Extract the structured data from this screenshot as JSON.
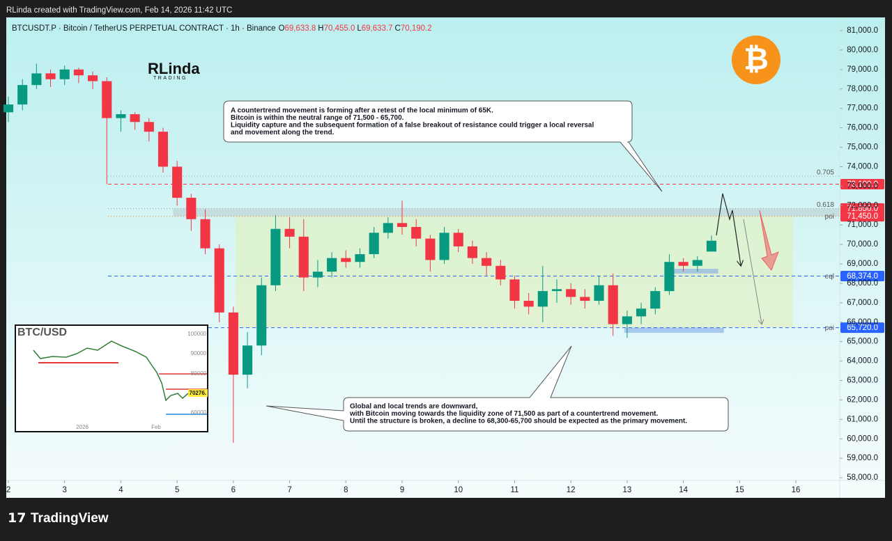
{
  "top_bar": "RLinda created with TradingView.com, Feb 14, 2026 11:42 UTC",
  "brand": {
    "name": "RLinda",
    "sub": "TRADING"
  },
  "footer": "TradingView",
  "chart_data": {
    "type": "candlestick",
    "title": "BTCUSDT.P · Bitcoin / TetherUS PERPETUAL CONTRACT · 1h · Binance",
    "ohlc_legend": [
      {
        "key": "O",
        "value": "69,633.8"
      },
      {
        "key": "H",
        "value": "70,455.0"
      },
      {
        "key": "L",
        "value": "69,633.7"
      },
      {
        "key": "C",
        "value": "70,190.2"
      }
    ],
    "up_color": "#089981",
    "down_color": "#f23645",
    "x": [
      2,
      2.25,
      2.5,
      2.75,
      3,
      3.25,
      3.5,
      3.75,
      4,
      4.25,
      4.5,
      4.75,
      5,
      5.25,
      5.5,
      5.75,
      6,
      6.25,
      6.5,
      6.75,
      7,
      7.25,
      7.5,
      7.75,
      8,
      8.25,
      8.5,
      8.75,
      9,
      9.25,
      9.5,
      9.75,
      10,
      10.25,
      10.5,
      10.75,
      11,
      11.25,
      11.5,
      11.75,
      12,
      12.25,
      12.5,
      12.75,
      13,
      13.25,
      13.5,
      13.75,
      14,
      14.25,
      14.5
    ],
    "open": [
      76800,
      77200,
      78200,
      78800,
      78500,
      79000,
      78700,
      78400,
      76500,
      76700,
      76300,
      75800,
      74000,
      72400,
      71300,
      69800,
      66500,
      63300,
      64800,
      67900,
      70800,
      70400,
      68300,
      68600,
      69300,
      69100,
      69500,
      70600,
      71100,
      70900,
      70300,
      69200,
      70600,
      69900,
      69300,
      68900,
      68200,
      67100,
      66800,
      67600,
      67700,
      67300,
      67100,
      67900,
      65900,
      66300,
      66700,
      67600,
      69100,
      68900,
      69633.8
    ],
    "high": [
      77600,
      78500,
      79300,
      79000,
      79200,
      79100,
      78900,
      78600,
      76900,
      76800,
      76500,
      76000,
      74300,
      72600,
      71800,
      70000,
      66800,
      65500,
      68300,
      71500,
      71400,
      71300,
      69200,
      69600,
      69700,
      69800,
      70900,
      71400,
      72250,
      71300,
      70500,
      70900,
      70800,
      70200,
      69600,
      69200,
      68400,
      67500,
      68900,
      68200,
      68000,
      67700,
      68400,
      68500,
      66600,
      67000,
      67800,
      69500,
      69300,
      69400,
      70455
    ],
    "low": [
      76300,
      76900,
      78000,
      78100,
      78200,
      78300,
      78000,
      73100,
      75800,
      75900,
      75300,
      73700,
      72000,
      70700,
      69500,
      66000,
      59800,
      62600,
      64300,
      67600,
      69800,
      67600,
      67800,
      68300,
      68800,
      68800,
      69300,
      70300,
      70500,
      69900,
      68600,
      69000,
      69600,
      69000,
      68400,
      67900,
      66700,
      66400,
      66000,
      67000,
      66900,
      66700,
      66900,
      65300,
      65200,
      65900,
      66400,
      67400,
      68600,
      68600,
      69633.7
    ],
    "close": [
      77200,
      78200,
      78800,
      78500,
      79000,
      78700,
      78400,
      76500,
      76700,
      76300,
      75800,
      74000,
      72400,
      71300,
      69800,
      66500,
      63300,
      64800,
      67900,
      70800,
      70400,
      68300,
      68600,
      69300,
      69100,
      69500,
      70600,
      71100,
      70900,
      70300,
      69200,
      70600,
      69900,
      69300,
      68900,
      68200,
      67100,
      66800,
      67600,
      67700,
      67300,
      67100,
      67900,
      65900,
      66300,
      66700,
      67600,
      69100,
      68900,
      69200,
      70190.2
    ],
    "xlim": [
      1.975,
      16.78
    ],
    "xticks": [
      2,
      3,
      4,
      5,
      6,
      7,
      8,
      9,
      10,
      11,
      12,
      13,
      14,
      15,
      16
    ],
    "ylim": [
      57860,
      81680
    ],
    "yticks": [
      {
        "value": 58000,
        "label": "58,000.0"
      },
      {
        "value": 59000,
        "label": "59,000.0"
      },
      {
        "value": 60000,
        "label": "60,000.0"
      },
      {
        "value": 61000,
        "label": "61,000.0"
      },
      {
        "value": 62000,
        "label": "62,000.0"
      },
      {
        "value": 63000,
        "label": "63,000.0"
      },
      {
        "value": 64000,
        "label": "64,000.0"
      },
      {
        "value": 65000,
        "label": "65,000.0"
      },
      {
        "value": 66000,
        "label": "66,000.0"
      },
      {
        "value": 67000,
        "label": "67,000.0"
      },
      {
        "value": 68000,
        "label": "68,000.0"
      },
      {
        "value": 69000,
        "label": "69,000.0"
      },
      {
        "value": 70000,
        "label": "70,000.0"
      },
      {
        "value": 71000,
        "label": "71,000.0"
      },
      {
        "value": 72000,
        "label": "72,000.0"
      },
      {
        "value": 73000,
        "label": "73,000.0"
      },
      {
        "value": 74000,
        "label": "74,000.0"
      },
      {
        "value": 75000,
        "label": "75,000.0"
      },
      {
        "value": 76000,
        "label": "76,000.0"
      },
      {
        "value": 77000,
        "label": "77,000.0"
      },
      {
        "value": 78000,
        "label": "78,000.0"
      },
      {
        "value": 79000,
        "label": "79,000.0"
      },
      {
        "value": 80000,
        "label": "80,000.0"
      },
      {
        "value": 81000,
        "label": "81,000.0"
      }
    ],
    "grid": false,
    "levels": [
      {
        "value": 73510,
        "tag": "0.705",
        "line_color": "#9aa0a6",
        "dash": "1 3"
      },
      {
        "value": 73100,
        "price_label": "73,100.0",
        "color": "#f23645",
        "line_color": "#f23645",
        "dash": "5 4"
      },
      {
        "value": 71850,
        "tag": "0.618",
        "price_label": "71,850.0",
        "color": "#f23645",
        "line_color": "#9aa0a6",
        "dash": "1 3"
      },
      {
        "value": 71450,
        "tag": "poi",
        "price_label": "71,450.0",
        "color": "#f23645",
        "line_color": "#f57c00",
        "dash": "1 3"
      },
      {
        "value": 68374,
        "tag": "eql",
        "price_label": "68,374.0",
        "color": "#2962ff",
        "line_color": "#2962ff",
        "dash": "5 4"
      },
      {
        "value": 65720,
        "tag": "poi",
        "price_label": "65,720.0",
        "color": "#2962ff",
        "line_color": "#2962ff",
        "dash": "5 4"
      }
    ],
    "zones": [
      {
        "x": [
          4.93,
          16.78
        ],
        "y": [
          71450,
          71850
        ],
        "color": "rgba(150,150,160,0.25)"
      },
      {
        "x": [
          6.04,
          15.95
        ],
        "y": [
          65720,
          71450
        ],
        "color": "rgba(225,240,180,0.55)"
      },
      {
        "x": [
          13.7,
          14.62
        ],
        "y": [
          68500,
          68750
        ],
        "color": "rgba(130,170,230,0.6)"
      },
      {
        "x": [
          12.95,
          14.72
        ],
        "y": [
          65450,
          65720
        ],
        "color": "rgba(130,170,230,0.6)"
      }
    ],
    "annotations": [
      [
        "A countertrend movement is forming after a retest of the local minimum of 65K.",
        "Bitcoin is within the neutral range of 71,500 - 65,700.",
        "Liquidity capture and the subsequent formation of a false breakout of resistance could trigger a local reversal",
        "and movement along the trend."
      ],
      [
        "Global and local trends are downward,",
        "with Bitcoin moving towards the liquidity zone of 71,500 as part of a countertrend movement.",
        "Until the structure is broken, a decline to 68,300-65,700 should be expected as the primary movement."
      ]
    ]
  },
  "inset": {
    "title": "BTC/USD",
    "price_labels": [
      "100000",
      "90000",
      "80000",
      "70276.",
      "60000"
    ],
    "time_labels": [
      "2026",
      "Feb"
    ]
  }
}
